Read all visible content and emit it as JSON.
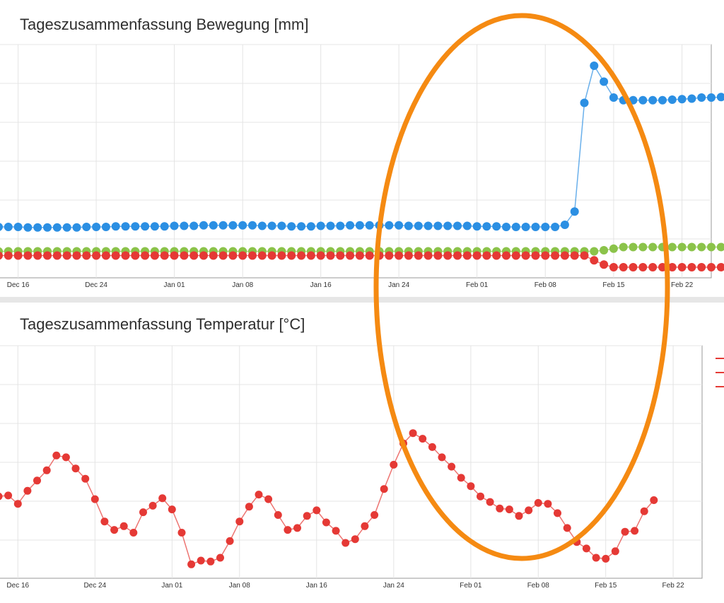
{
  "chart_data": [
    {
      "type": "line",
      "title": "Tageszusammenfassung Bewegung [mm]",
      "x_ticks": [
        "Dec 16",
        "Dec 24",
        "Jan 01",
        "Jan 08",
        "Jan 16",
        "Jan 24",
        "Feb 01",
        "Feb 08",
        "Feb 15",
        "Feb 22"
      ],
      "x_start": "Dec 14",
      "x_end": "Feb 25",
      "grid": true,
      "legend": "none",
      "series": [
        {
          "color": "#2b8fe3",
          "values": [
            61.6,
            61.6,
            61.6,
            61.5,
            61.5,
            61.5,
            61.5,
            61.5,
            61.5,
            61.6,
            61.6,
            61.6,
            61.7,
            61.7,
            61.7,
            61.7,
            61.7,
            61.7,
            61.8,
            61.8,
            61.8,
            61.9,
            61.9,
            61.9,
            61.9,
            61.9,
            61.9,
            61.8,
            61.8,
            61.8,
            61.7,
            61.7,
            61.7,
            61.8,
            61.8,
            61.8,
            61.9,
            61.9,
            61.9,
            61.9,
            61.9,
            61.9,
            61.8,
            61.8,
            61.8,
            61.8,
            61.8,
            61.8,
            61.8,
            61.7,
            61.7,
            61.7,
            61.6,
            61.6,
            61.6,
            61.6,
            61.6,
            61.6,
            62.0,
            64.5,
            85.0,
            92.0,
            89.0,
            86.0,
            85.5,
            85.5,
            85.5,
            85.5,
            85.5,
            85.6,
            85.7,
            85.8,
            86.0,
            86.0,
            86.1,
            86.1,
            86.1,
            86.0,
            86.0,
            85.9,
            85.8,
            85.8,
            85.7,
            85.6
          ]
        },
        {
          "color": "#8bc34a",
          "values": [
            57.0,
            57.0,
            57.0,
            57.0,
            57.0,
            57.0,
            57.0,
            57.0,
            57.0,
            57.0,
            57.0,
            57.0,
            57.0,
            57.0,
            57.0,
            57.0,
            57.0,
            57.0,
            57.0,
            57.0,
            57.0,
            57.0,
            57.0,
            57.0,
            57.0,
            57.0,
            57.0,
            57.0,
            57.0,
            57.0,
            57.0,
            57.0,
            57.0,
            57.0,
            57.0,
            57.0,
            57.0,
            57.0,
            57.0,
            57.0,
            57.0,
            57.0,
            57.0,
            57.0,
            57.0,
            57.0,
            57.0,
            57.0,
            57.0,
            57.0,
            57.0,
            57.0,
            57.0,
            57.0,
            57.0,
            57.0,
            57.0,
            57.0,
            57.0,
            57.0,
            57.0,
            57.0,
            57.2,
            57.5,
            57.8,
            57.8,
            57.8,
            57.8,
            57.8,
            57.8,
            57.8,
            57.8,
            57.8,
            57.8,
            57.8,
            57.8,
            57.8,
            57.8,
            57.8,
            57.8,
            57.8,
            57.8,
            57.8,
            57.8
          ]
        },
        {
          "color": "#e53935",
          "values": [
            56.2,
            56.2,
            56.2,
            56.2,
            56.2,
            56.2,
            56.2,
            56.2,
            56.2,
            56.2,
            56.2,
            56.2,
            56.2,
            56.2,
            56.2,
            56.2,
            56.2,
            56.2,
            56.2,
            56.2,
            56.2,
            56.2,
            56.2,
            56.2,
            56.2,
            56.2,
            56.2,
            56.2,
            56.2,
            56.2,
            56.2,
            56.2,
            56.2,
            56.2,
            56.2,
            56.2,
            56.2,
            56.2,
            56.2,
            56.2,
            56.2,
            56.2,
            56.2,
            56.2,
            56.2,
            56.2,
            56.2,
            56.2,
            56.2,
            56.2,
            56.2,
            56.2,
            56.2,
            56.2,
            56.2,
            56.2,
            56.2,
            56.2,
            56.2,
            56.2,
            56.2,
            55.3,
            54.5,
            54.0,
            54.0,
            54.0,
            54.0,
            54.0,
            54.0,
            54.0,
            54.0,
            54.0,
            54.0,
            54.0,
            54.0,
            54.0,
            54.0,
            54.0,
            54.0,
            54.0,
            54.0,
            54.0,
            54.0,
            54.0
          ]
        }
      ]
    },
    {
      "type": "line",
      "title": "Tageszusammenfassung Temperatur [°C]",
      "x_ticks": [
        "Dec 16",
        "Dec 24",
        "Jan 01",
        "Jan 08",
        "Jan 16",
        "Jan 24",
        "Feb 01",
        "Feb 08",
        "Feb 15",
        "Feb 22"
      ],
      "x_start": "Dec 14",
      "x_end": "Feb 25",
      "grid": true,
      "legend": "none",
      "series": [
        {
          "color": "#e53935",
          "values": [
            6.8,
            6.9,
            6.0,
            7.4,
            8.5,
            9.6,
            11.2,
            11.0,
            9.8,
            8.7,
            6.5,
            4.1,
            3.2,
            3.6,
            2.9,
            5.1,
            5.8,
            6.6,
            5.4,
            2.9,
            -0.5,
            -0.1,
            -0.2,
            0.2,
            2.0,
            4.1,
            5.7,
            7.0,
            6.5,
            4.8,
            3.2,
            3.4,
            4.7,
            5.3,
            4.0,
            3.1,
            1.8,
            2.2,
            3.6,
            4.8,
            7.6,
            10.2,
            12.5,
            13.6,
            13.0,
            12.1,
            11.0,
            10.0,
            8.8,
            7.9,
            6.8,
            6.2,
            5.5,
            5.4,
            4.7,
            5.3,
            6.1,
            6.0,
            5.0,
            3.4,
            1.9,
            1.2,
            0.2,
            0.1,
            0.9,
            3.0,
            3.1,
            5.2,
            6.4
          ]
        }
      ]
    }
  ]
}
